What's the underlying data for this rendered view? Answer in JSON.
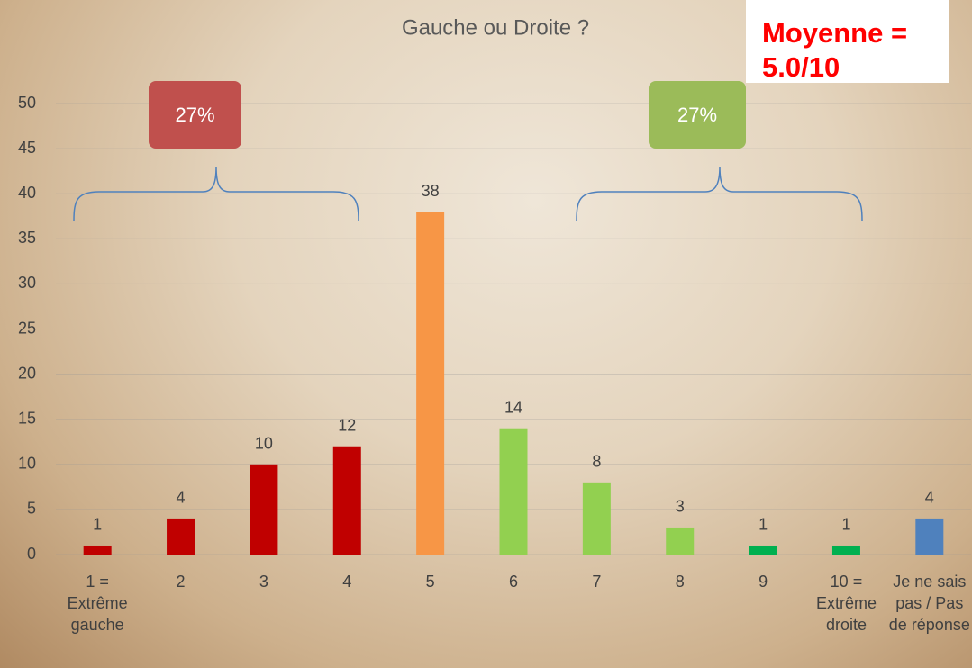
{
  "chart_data": {
    "type": "bar",
    "title": "Gauche ou Droite ?",
    "categories": [
      "1 = Extrême gauche",
      "2",
      "3",
      "4",
      "5",
      "6",
      "7",
      "8",
      "9",
      "10 = Extrême droite",
      "Je ne sais pas / Pas de réponse"
    ],
    "values": [
      1,
      4,
      10,
      12,
      38,
      14,
      8,
      3,
      1,
      1,
      4
    ],
    "colors": [
      "#c00000",
      "#c00000",
      "#c00000",
      "#c00000",
      "#f79646",
      "#92d050",
      "#92d050",
      "#92d050",
      "#00b050",
      "#00b050",
      "#4f81bd"
    ],
    "ylim": [
      0,
      50
    ],
    "yticks": [
      0,
      5,
      10,
      15,
      20,
      25,
      30,
      35,
      40,
      45,
      50
    ],
    "grid": true,
    "annotations": [
      {
        "text": "27%",
        "color": "#c0504d"
      },
      {
        "text": "27%",
        "color": "#9bbb59"
      },
      {
        "text": "Moyenne = 5.0/10",
        "color": "#ff0000"
      }
    ]
  }
}
